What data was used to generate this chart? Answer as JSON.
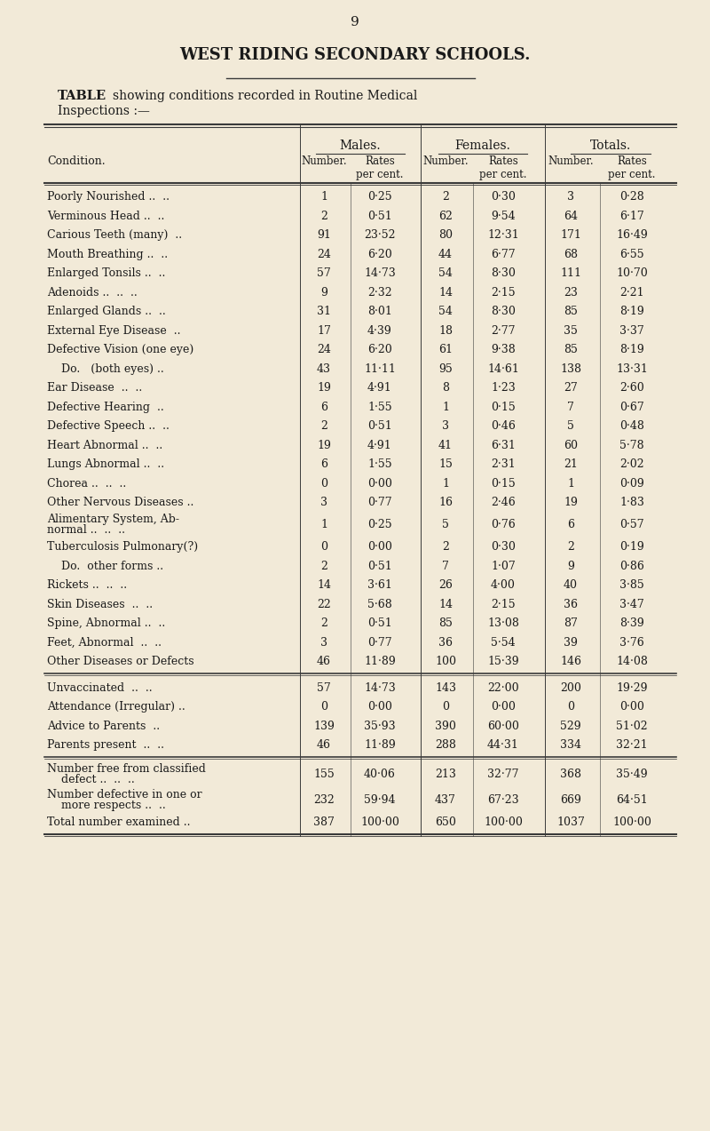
{
  "page_number": "9",
  "title": "WEST RIDING SECONDARY SCHOOLS.",
  "bg_color": "#f2ead8",
  "text_color": "#1a1a1a",
  "line_color": "#3a3a3a",
  "rows": [
    [
      "Poorly Nourished ..  ..",
      "1",
      "0·25",
      "2",
      "0·30",
      "3",
      "0·28"
    ],
    [
      "Verminous Head ..  ..",
      "2",
      "0·51",
      "62",
      "9·54",
      "64",
      "6·17"
    ],
    [
      "Carious Teeth (many)  ..",
      "91",
      "23·52",
      "80",
      "12·31",
      "171",
      "16·49"
    ],
    [
      "Mouth Breathing ..  ..",
      "24",
      "6·20",
      "44",
      "6·77",
      "68",
      "6·55"
    ],
    [
      "Enlarged Tonsils ..  ..",
      "57",
      "14·73",
      "54",
      "8·30",
      "111",
      "10·70"
    ],
    [
      "Adenoids ..  ..  ..",
      "9",
      "2·32",
      "14",
      "2·15",
      "23",
      "2·21"
    ],
    [
      "Enlarged Glands ..  ..",
      "31",
      "8·01",
      "54",
      "8·30",
      "85",
      "8·19"
    ],
    [
      "External Eye Disease  ..",
      "17",
      "4·39",
      "18",
      "2·77",
      "35",
      "3·37"
    ],
    [
      "Defective Vision (one eye)",
      "24",
      "6·20",
      "61",
      "9·38",
      "85",
      "8·19"
    ],
    [
      "    Do.   (both eyes) ..",
      "43",
      "11·11",
      "95",
      "14·61",
      "138",
      "13·31"
    ],
    [
      "Ear Disease  ..  ..",
      "19",
      "4·91",
      "8",
      "1·23",
      "27",
      "2·60"
    ],
    [
      "Defective Hearing  ..",
      "6",
      "1·55",
      "1",
      "0·15",
      "7",
      "0·67"
    ],
    [
      "Defective Speech ..  ..",
      "2",
      "0·51",
      "3",
      "0·46",
      "5",
      "0·48"
    ],
    [
      "Heart Abnormal ..  ..",
      "19",
      "4·91",
      "41",
      "6·31",
      "60",
      "5·78"
    ],
    [
      "Lungs Abnormal ..  ..",
      "6",
      "1·55",
      "15",
      "2·31",
      "21",
      "2·02"
    ],
    [
      "Chorea ..  ..  ..",
      "0",
      "0·00",
      "1",
      "0·15",
      "1",
      "0·09"
    ],
    [
      "Other Nervous Diseases ..",
      "3",
      "0·77",
      "16",
      "2·46",
      "19",
      "1·83"
    ],
    [
      "Alimentary System, Ab-\nnormal ..  ..  ..",
      "1",
      "0·25",
      "5",
      "0·76",
      "6",
      "0·57"
    ],
    [
      "Tuberculosis Pulmonary(?)",
      "0",
      "0·00",
      "2",
      "0·30",
      "2",
      "0·19"
    ],
    [
      "    Do.  other forms ..",
      "2",
      "0·51",
      "7",
      "1·07",
      "9",
      "0·86"
    ],
    [
      "Rickets ..  ..  ..",
      "14",
      "3·61",
      "26",
      "4·00",
      "40",
      "3·85"
    ],
    [
      "Skin Diseases  ..  ..",
      "22",
      "5·68",
      "14",
      "2·15",
      "36",
      "3·47"
    ],
    [
      "Spine, Abnormal ..  ..",
      "2",
      "0·51",
      "85",
      "13·08",
      "87",
      "8·39"
    ],
    [
      "Feet, Abnormal  ..  ..",
      "3",
      "0·77",
      "36",
      "5·54",
      "39",
      "3·76"
    ],
    [
      "Other Diseases or Defects",
      "46",
      "11·89",
      "100",
      "15·39",
      "146",
      "14·08"
    ]
  ],
  "rows2": [
    [
      "Unvaccinated  ..  ..",
      "57",
      "14·73",
      "143",
      "22·00",
      "200",
      "19·29"
    ],
    [
      "Attendance (Irregular) ..",
      "0",
      "0·00",
      "0",
      "0·00",
      "0",
      "0·00"
    ],
    [
      "Advice to Parents  ..",
      "139",
      "35·93",
      "390",
      "60·00",
      "529",
      "51·02"
    ],
    [
      "Parents present  ..  ..",
      "46",
      "11·89",
      "288",
      "44·31",
      "334",
      "32·21"
    ]
  ],
  "rows3": [
    [
      "Number free from classified\n    defect ..  ..  ..",
      "155",
      "40·06",
      "213",
      "32·77",
      "368",
      "35·49"
    ],
    [
      "Number defective in one or\n    more respects ..  ..",
      "232",
      "59·94",
      "437",
      "67·23",
      "669",
      "64·51"
    ],
    [
      "Total number examined ..",
      "387",
      "100·00",
      "650",
      "100·00",
      "1037",
      "100·00"
    ]
  ]
}
